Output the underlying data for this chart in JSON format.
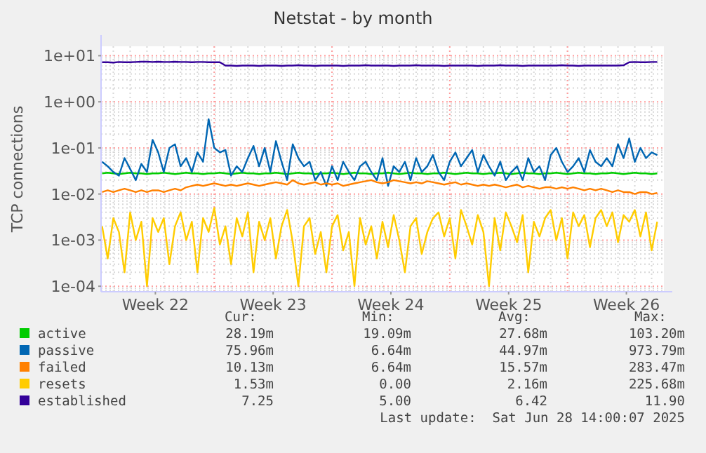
{
  "chart_data": {
    "type": "line",
    "title": "Netstat - by month",
    "ylabel": "TCP connections",
    "log": "y",
    "grid": true,
    "legend": "bottom",
    "line_style": "solid",
    "xlim": [
      "2025-05-26T06:30",
      "2025-06-28T17:30"
    ],
    "xticks": [
      {
        "value": "2025-05-29T12:00",
        "label": "Week 22"
      },
      {
        "value": "2025-06-05T12:00",
        "label": "Week 23"
      },
      {
        "value": "2025-06-12T12:00",
        "label": "Week 24"
      },
      {
        "value": "2025-06-19T12:00",
        "label": "Week 25"
      },
      {
        "value": "2025-06-26T12:00",
        "label": "Week 26"
      }
    ],
    "ylim": [
      7.6e-05,
      16
    ],
    "yticks": [
      {
        "value": 0.0001,
        "label": "1e-04"
      },
      {
        "value": 0.001,
        "label": "1e-03"
      },
      {
        "value": 0.01,
        "label": "1e-02"
      },
      {
        "value": 0.1,
        "label": "1e-01"
      },
      {
        "value": 1,
        "label": "1e+00"
      },
      {
        "value": 10,
        "label": "1e+01"
      }
    ],
    "ref_lines": [
      {
        "axis": "x",
        "value": "2025-06-02T00:00",
        "color": "#ff9c9c",
        "line_style": "dotted"
      },
      {
        "axis": "x",
        "value": "2025-06-09T00:00",
        "color": "#ff9c9c",
        "line_style": "dotted"
      },
      {
        "axis": "x",
        "value": "2025-06-16T00:00",
        "color": "#ff9c9c",
        "line_style": "dotted"
      },
      {
        "axis": "x",
        "value": "2025-06-23T00:00",
        "color": "#ff9c9c",
        "line_style": "dotted"
      }
    ],
    "x": [
      "2025-05-26T08:00",
      "2025-05-26T16:00",
      "2025-05-27T00:00",
      "2025-05-27T08:00",
      "2025-05-27T16:00",
      "2025-05-28T00:00",
      "2025-05-28T08:00",
      "2025-05-28T16:00",
      "2025-05-29T00:00",
      "2025-05-29T08:00",
      "2025-05-29T16:00",
      "2025-05-30T00:00",
      "2025-05-30T08:00",
      "2025-05-30T16:00",
      "2025-05-31T00:00",
      "2025-05-31T08:00",
      "2025-05-31T16:00",
      "2025-06-01T00:00",
      "2025-06-01T08:00",
      "2025-06-01T16:00",
      "2025-06-02T00:00",
      "2025-06-02T08:00",
      "2025-06-02T16:00",
      "2025-06-03T00:00",
      "2025-06-03T08:00",
      "2025-06-03T16:00",
      "2025-06-04T00:00",
      "2025-06-04T08:00",
      "2025-06-04T16:00",
      "2025-06-05T00:00",
      "2025-06-05T08:00",
      "2025-06-05T16:00",
      "2025-06-06T00:00",
      "2025-06-06T08:00",
      "2025-06-06T16:00",
      "2025-06-07T00:00",
      "2025-06-07T08:00",
      "2025-06-07T16:00",
      "2025-06-08T00:00",
      "2025-06-08T08:00",
      "2025-06-08T16:00",
      "2025-06-09T00:00",
      "2025-06-09T08:00",
      "2025-06-09T16:00",
      "2025-06-10T00:00",
      "2025-06-10T08:00",
      "2025-06-10T16:00",
      "2025-06-11T00:00",
      "2025-06-11T08:00",
      "2025-06-11T16:00",
      "2025-06-12T00:00",
      "2025-06-12T08:00",
      "2025-06-12T16:00",
      "2025-06-13T00:00",
      "2025-06-13T08:00",
      "2025-06-13T16:00",
      "2025-06-14T00:00",
      "2025-06-14T08:00",
      "2025-06-14T16:00",
      "2025-06-15T00:00",
      "2025-06-15T08:00",
      "2025-06-15T16:00",
      "2025-06-16T00:00",
      "2025-06-16T08:00",
      "2025-06-16T16:00",
      "2025-06-17T00:00",
      "2025-06-17T08:00",
      "2025-06-17T16:00",
      "2025-06-18T00:00",
      "2025-06-18T08:00",
      "2025-06-18T16:00",
      "2025-06-19T00:00",
      "2025-06-19T08:00",
      "2025-06-19T16:00",
      "2025-06-20T00:00",
      "2025-06-20T08:00",
      "2025-06-20T16:00",
      "2025-06-21T00:00",
      "2025-06-21T08:00",
      "2025-06-21T16:00",
      "2025-06-22T00:00",
      "2025-06-22T08:00",
      "2025-06-22T16:00",
      "2025-06-23T00:00",
      "2025-06-23T08:00",
      "2025-06-23T16:00",
      "2025-06-24T00:00",
      "2025-06-24T08:00",
      "2025-06-24T16:00",
      "2025-06-25T00:00",
      "2025-06-25T08:00",
      "2025-06-25T16:00",
      "2025-06-26T00:00",
      "2025-06-26T08:00",
      "2025-06-26T16:00",
      "2025-06-27T00:00",
      "2025-06-27T08:00",
      "2025-06-27T16:00",
      "2025-06-28T00:00",
      "2025-06-28T08:00"
    ],
    "series": [
      {
        "name": "active",
        "color": "#00cc00",
        "values": [
          0.028,
          0.029,
          0.028,
          0.027,
          0.028,
          0.029,
          0.028,
          0.028,
          0.027,
          0.028,
          0.028,
          0.029,
          0.028,
          0.027,
          0.028,
          0.029,
          0.028,
          0.028,
          0.027,
          0.028,
          0.028,
          0.029,
          0.028,
          0.027,
          0.028,
          0.029,
          0.028,
          0.028,
          0.027,
          0.028,
          0.028,
          0.029,
          0.028,
          0.027,
          0.028,
          0.029,
          0.028,
          0.028,
          0.027,
          0.028,
          0.028,
          0.029,
          0.028,
          0.027,
          0.028,
          0.029,
          0.028,
          0.028,
          0.027,
          0.028,
          0.028,
          0.029,
          0.028,
          0.027,
          0.028,
          0.029,
          0.028,
          0.028,
          0.027,
          0.028,
          0.028,
          0.029,
          0.028,
          0.027,
          0.028,
          0.029,
          0.028,
          0.028,
          0.027,
          0.028,
          0.028,
          0.029,
          0.028,
          0.027,
          0.028,
          0.029,
          0.028,
          0.028,
          0.027,
          0.028,
          0.028,
          0.029,
          0.028,
          0.027,
          0.028,
          0.029,
          0.028,
          0.028,
          0.027,
          0.028,
          0.028,
          0.029,
          0.028,
          0.027,
          0.028,
          0.029,
          0.028,
          0.028,
          0.027,
          0.028
        ]
      },
      {
        "name": "passive",
        "color": "#0066b3",
        "values": [
          0.05,
          0.04,
          0.03,
          0.025,
          0.06,
          0.035,
          0.02,
          0.045,
          0.03,
          0.15,
          0.08,
          0.03,
          0.1,
          0.12,
          0.04,
          0.06,
          0.03,
          0.08,
          0.05,
          0.42,
          0.1,
          0.08,
          0.09,
          0.025,
          0.04,
          0.03,
          0.06,
          0.11,
          0.04,
          0.1,
          0.03,
          0.14,
          0.05,
          0.02,
          0.12,
          0.06,
          0.04,
          0.05,
          0.02,
          0.03,
          0.015,
          0.04,
          0.02,
          0.05,
          0.03,
          0.02,
          0.04,
          0.05,
          0.03,
          0.02,
          0.06,
          0.015,
          0.04,
          0.03,
          0.05,
          0.02,
          0.06,
          0.03,
          0.04,
          0.07,
          0.03,
          0.02,
          0.05,
          0.08,
          0.04,
          0.06,
          0.09,
          0.03,
          0.07,
          0.04,
          0.025,
          0.05,
          0.02,
          0.03,
          0.04,
          0.02,
          0.06,
          0.03,
          0.04,
          0.02,
          0.07,
          0.1,
          0.05,
          0.03,
          0.04,
          0.06,
          0.03,
          0.09,
          0.05,
          0.04,
          0.06,
          0.04,
          0.12,
          0.06,
          0.16,
          0.05,
          0.1,
          0.06,
          0.08,
          0.07
        ]
      },
      {
        "name": "failed",
        "color": "#ff8000",
        "values": [
          0.011,
          0.012,
          0.011,
          0.012,
          0.013,
          0.012,
          0.011,
          0.012,
          0.011,
          0.012,
          0.012,
          0.011,
          0.012,
          0.013,
          0.012,
          0.014,
          0.015,
          0.016,
          0.015,
          0.016,
          0.017,
          0.016,
          0.015,
          0.016,
          0.015,
          0.016,
          0.017,
          0.016,
          0.015,
          0.016,
          0.017,
          0.018,
          0.017,
          0.016,
          0.02,
          0.017,
          0.016,
          0.017,
          0.018,
          0.016,
          0.017,
          0.016,
          0.017,
          0.015,
          0.016,
          0.017,
          0.018,
          0.019,
          0.02,
          0.018,
          0.017,
          0.018,
          0.02,
          0.019,
          0.018,
          0.017,
          0.018,
          0.017,
          0.019,
          0.018,
          0.017,
          0.016,
          0.017,
          0.018,
          0.016,
          0.017,
          0.016,
          0.015,
          0.016,
          0.015,
          0.016,
          0.015,
          0.014,
          0.015,
          0.016,
          0.014,
          0.015,
          0.014,
          0.013,
          0.014,
          0.014,
          0.013,
          0.014,
          0.013,
          0.014,
          0.013,
          0.012,
          0.013,
          0.012,
          0.013,
          0.012,
          0.011,
          0.012,
          0.011,
          0.011,
          0.01,
          0.011,
          0.011,
          0.01,
          0.0105
        ]
      },
      {
        "name": "resets",
        "color": "#ffcc00",
        "values": [
          0.002,
          0.0004,
          0.003,
          0.0015,
          0.0002,
          0.004,
          0.001,
          0.0025,
          0.0001,
          0.003,
          0.0015,
          0.003,
          0.0003,
          0.002,
          0.004,
          0.001,
          0.0025,
          0.0002,
          0.003,
          0.0015,
          0.005,
          0.0008,
          0.002,
          0.0003,
          0.003,
          0.0012,
          0.004,
          0.0002,
          0.0025,
          0.001,
          0.003,
          0.0004,
          0.002,
          0.0045,
          0.0009,
          0.0001,
          0.002,
          0.003,
          0.0005,
          0.0015,
          0.0002,
          0.002,
          0.0035,
          0.0006,
          0.0015,
          0.0001,
          0.003,
          0.0008,
          0.002,
          0.0004,
          0.0025,
          0.0007,
          0.0035,
          0.001,
          0.0002,
          0.002,
          0.003,
          0.0005,
          0.0015,
          0.003,
          0.004,
          0.0012,
          0.003,
          0.0004,
          0.0045,
          0.002,
          0.0008,
          0.0035,
          0.0015,
          0.0001,
          0.003,
          0.0006,
          0.004,
          0.002,
          0.0009,
          0.0035,
          0.0002,
          0.0025,
          0.0012,
          0.003,
          0.0045,
          0.001,
          0.003,
          0.0004,
          0.004,
          0.002,
          0.0035,
          0.0007,
          0.003,
          0.0045,
          0.002,
          0.004,
          0.0009,
          0.0035,
          0.0025,
          0.0045,
          0.0012,
          0.004,
          0.0006,
          0.0025
        ]
      },
      {
        "name": "established",
        "color": "#330099",
        "values": [
          7.2,
          7.2,
          7.1,
          7.3,
          7.2,
          7.2,
          7.3,
          7.4,
          7.4,
          7.3,
          7.4,
          7.3,
          7.3,
          7.4,
          7.3,
          7.3,
          7.2,
          7.3,
          7.3,
          7.2,
          7.2,
          7.2,
          6.1,
          6.1,
          6,
          6.1,
          6.1,
          6.1,
          6,
          6.1,
          6.1,
          6.1,
          6,
          6.1,
          6.1,
          6.2,
          6.1,
          6.1,
          6,
          6.1,
          6.1,
          6.1,
          6.1,
          6,
          6.1,
          6.1,
          6.1,
          6.2,
          6.1,
          6.1,
          6.1,
          6.1,
          6,
          6.1,
          6.1,
          6.1,
          6.2,
          6.1,
          6.1,
          6.1,
          6.1,
          6,
          6.1,
          6.1,
          6.1,
          6.1,
          6.1,
          6,
          6.1,
          6.1,
          6.1,
          6.2,
          6.1,
          6.1,
          6.1,
          6,
          6.1,
          6.1,
          6.1,
          6.1,
          6.1,
          6.1,
          6.2,
          6.1,
          6.1,
          6,
          6.1,
          6.1,
          6.1,
          6.1,
          6.1,
          6.1,
          6.1,
          6.2,
          7.2,
          7.3,
          7.2,
          7.2,
          7.3,
          7.3
        ]
      }
    ],
    "annotations": [
      "Cur:",
      "Min:",
      "Avg:",
      "Max:",
      "28.19m",
      "19.09m",
      "27.68m",
      "103.20m",
      "75.96m",
      "6.64m",
      "44.97m",
      "973.79m",
      "10.13m",
      "6.64m",
      "15.57m",
      "283.47m",
      "1.53m",
      "0.00",
      "2.16m",
      "225.68m",
      "7.25",
      "5.00",
      "6.42",
      "11.90",
      "Last update:  Sat Jun 28 14:00:07 2025"
    ]
  }
}
